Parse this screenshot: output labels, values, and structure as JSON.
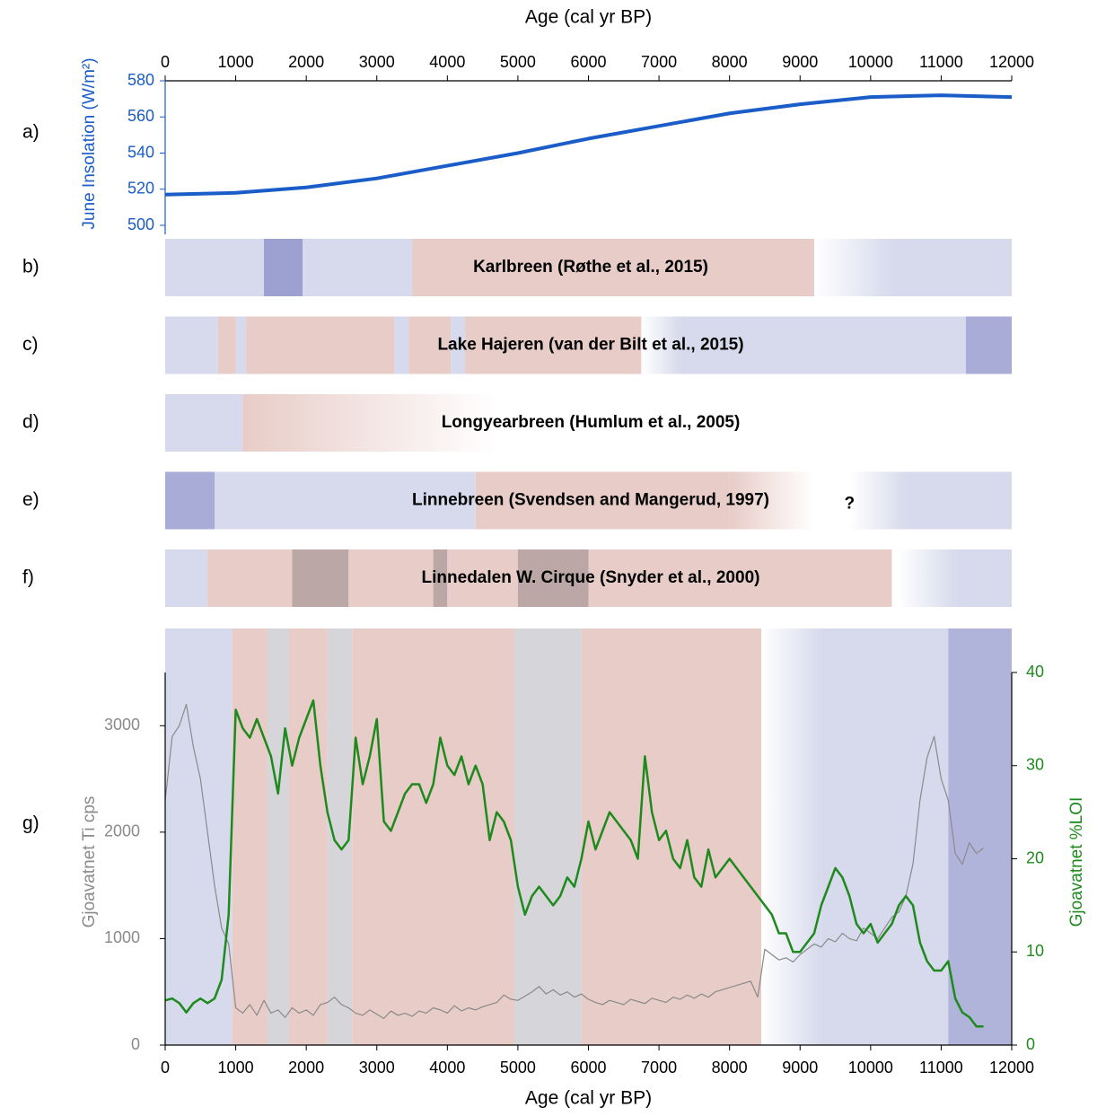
{
  "chart_data": [
    {
      "type": "line",
      "panel": "a)",
      "xlabel": "Age (cal yr BP)",
      "ylabel": "June Insolation (W/m²)",
      "xlim": [
        0,
        12000
      ],
      "xticks": [
        0,
        1000,
        2000,
        3000,
        4000,
        5000,
        6000,
        7000,
        8000,
        9000,
        10000,
        11000,
        12000
      ],
      "ylim": [
        500,
        580
      ],
      "yticks": [
        500,
        520,
        540,
        560,
        580
      ],
      "axis_color": "#1a5cc8",
      "series": [
        {
          "color": "#1a5cc8",
          "x": [
            0,
            1000,
            2000,
            3000,
            4000,
            5000,
            6000,
            7000,
            8000,
            9000,
            10000,
            11000,
            12000
          ],
          "values": [
            517,
            518,
            521,
            526,
            533,
            540,
            548,
            555,
            562,
            567,
            571,
            572,
            571
          ]
        }
      ]
    },
    {
      "type": "timeline",
      "xlim": [
        0,
        12000
      ],
      "rows": [
        {
          "panel": "b)",
          "label": "Karlbreen (Røthe et al., 2015)",
          "segments": [
            {
              "start": 0,
              "end": 1400,
              "color": "#d7daec"
            },
            {
              "start": 1400,
              "end": 1950,
              "color": "#9ca1d2"
            },
            {
              "start": 1950,
              "end": 3500,
              "color": "#d7daec"
            },
            {
              "start": 3500,
              "end": 9200,
              "color": "#e8ccc7"
            },
            {
              "start": 9200,
              "end": 10300,
              "color": "#ffffff",
              "to_color": "#d7daec"
            },
            {
              "start": 10300,
              "end": 12000,
              "color": "#d7daec"
            }
          ]
        },
        {
          "panel": "c)",
          "label": "Lake Hajeren (van der Bilt et al., 2015)",
          "segments": [
            {
              "start": 0,
              "end": 750,
              "color": "#d7daec"
            },
            {
              "start": 750,
              "end": 1000,
              "color": "#e8ccc7"
            },
            {
              "start": 1000,
              "end": 1150,
              "color": "#d7daec"
            },
            {
              "start": 1150,
              "end": 3250,
              "color": "#e8ccc7"
            },
            {
              "start": 3250,
              "end": 3450,
              "color": "#d7daec"
            },
            {
              "start": 3450,
              "end": 4050,
              "color": "#e8ccc7"
            },
            {
              "start": 4050,
              "end": 4250,
              "color": "#d7daec"
            },
            {
              "start": 4250,
              "end": 6750,
              "color": "#e8ccc7"
            },
            {
              "start": 6750,
              "end": 7300,
              "color": "#ffffff",
              "to_color": "#d7daec"
            },
            {
              "start": 7300,
              "end": 11350,
              "color": "#d7daec"
            },
            {
              "start": 11350,
              "end": 12000,
              "color": "#a8acd6"
            }
          ]
        },
        {
          "panel": "d)",
          "label": "Longyearbreen (Humlum et al., 2005)",
          "segments": [
            {
              "start": 0,
              "end": 1100,
              "color": "#d7daec"
            },
            {
              "start": 1100,
              "end": 4700,
              "color": "#e8ccc7",
              "to_color": "#ffffff"
            }
          ]
        },
        {
          "panel": "e)",
          "label": "Linnebreen (Svendsen and Mangerud, 1997)",
          "note": "?",
          "note_at": 9700,
          "segments": [
            {
              "start": 0,
              "end": 700,
              "color": "#a8acd6"
            },
            {
              "start": 700,
              "end": 4400,
              "color": "#d7daec"
            },
            {
              "start": 4400,
              "end": 8000,
              "color": "#e8ccc7"
            },
            {
              "start": 8000,
              "end": 9200,
              "color": "#e8ccc7",
              "to_color": "#ffffff"
            },
            {
              "start": 9700,
              "end": 10500,
              "color": "#ffffff",
              "to_color": "#d7daec"
            },
            {
              "start": 10500,
              "end": 12000,
              "color": "#d7daec"
            }
          ]
        },
        {
          "panel": "f)",
          "label": "Linnedalen W. Cirque (Snyder et al., 2000)",
          "segments": [
            {
              "start": 0,
              "end": 600,
              "color": "#d7daec"
            },
            {
              "start": 600,
              "end": 1800,
              "color": "#e8ccc7"
            },
            {
              "start": 1800,
              "end": 2600,
              "color": "#bba8a6"
            },
            {
              "start": 2600,
              "end": 3800,
              "color": "#e8ccc7"
            },
            {
              "start": 3800,
              "end": 4000,
              "color": "#bba8a6"
            },
            {
              "start": 4000,
              "end": 5000,
              "color": "#e8ccc7"
            },
            {
              "start": 5000,
              "end": 6000,
              "color": "#bba8a6"
            },
            {
              "start": 6000,
              "end": 10300,
              "color": "#e8ccc7"
            },
            {
              "start": 10400,
              "end": 11200,
              "color": "#ffffff",
              "to_color": "#d7daec"
            },
            {
              "start": 11200,
              "end": 12000,
              "color": "#d7daec"
            }
          ]
        }
      ]
    },
    {
      "type": "line",
      "panel": "g)",
      "xlabel": "Age (cal yr BP)",
      "ylabel": "Gjoavatnet Ti cps",
      "y2label": "Gjoavatnet %LOI",
      "xlim": [
        0,
        12000
      ],
      "xticks": [
        0,
        1000,
        2000,
        3000,
        4000,
        5000,
        6000,
        7000,
        8000,
        9000,
        10000,
        11000,
        12000
      ],
      "ylim": [
        0,
        3500
      ],
      "yticks": [
        0,
        1000,
        2000,
        3000
      ],
      "y2lim": [
        0,
        40
      ],
      "y2ticks": [
        0,
        10,
        20,
        30,
        40
      ],
      "shading": [
        {
          "start": 0,
          "end": 950,
          "color": "#d7daec"
        },
        {
          "start": 950,
          "end": 1450,
          "color": "#e8ccc7"
        },
        {
          "start": 1450,
          "end": 1750,
          "color": "#d6d6da"
        },
        {
          "start": 1750,
          "end": 2300,
          "color": "#e8ccc7"
        },
        {
          "start": 2300,
          "end": 2650,
          "color": "#d6d6da"
        },
        {
          "start": 2650,
          "end": 4950,
          "color": "#e8ccc7"
        },
        {
          "start": 4950,
          "end": 5900,
          "color": "#d6d6da"
        },
        {
          "start": 5900,
          "end": 8450,
          "color": "#e8ccc7"
        },
        {
          "start": 8450,
          "end": 9300,
          "color": "#ffffff",
          "to_color": "#d7daec"
        },
        {
          "start": 9300,
          "end": 11100,
          "color": "#d7daec"
        },
        {
          "start": 11100,
          "end": 12000,
          "color": "#b1b4da"
        }
      ],
      "series": [
        {
          "color": "#8a8a8a",
          "x": [
            0,
            100,
            200,
            300,
            400,
            500,
            600,
            700,
            800,
            900,
            1000,
            1100,
            1200,
            1300,
            1400,
            1500,
            1600,
            1700,
            1800,
            1900,
            2000,
            2100,
            2200,
            2300,
            2400,
            2500,
            2600,
            2700,
            2800,
            2900,
            3000,
            3100,
            3200,
            3300,
            3400,
            3500,
            3600,
            3700,
            3800,
            3900,
            4000,
            4100,
            4200,
            4300,
            4400,
            4500,
            4600,
            4700,
            4800,
            4900,
            5000,
            5100,
            5200,
            5300,
            5400,
            5500,
            5600,
            5700,
            5800,
            5900,
            6000,
            6100,
            6200,
            6300,
            6400,
            6500,
            6600,
            6700,
            6800,
            6900,
            7000,
            7100,
            7200,
            7300,
            7400,
            7500,
            7600,
            7700,
            7800,
            7900,
            8000,
            8100,
            8200,
            8300,
            8400,
            8500,
            8600,
            8700,
            8800,
            8900,
            9000,
            9100,
            9200,
            9300,
            9400,
            9500,
            9600,
            9700,
            9800,
            9900,
            10000,
            10100,
            10200,
            10300,
            10400,
            10500,
            10600,
            10700,
            10800,
            10900,
            11000,
            11100,
            11200,
            11300,
            11400,
            11500,
            11600
          ],
          "values": [
            2300,
            2900,
            3000,
            3200,
            2800,
            2500,
            2000,
            1500,
            1100,
            950,
            350,
            300,
            380,
            280,
            420,
            300,
            330,
            260,
            350,
            300,
            330,
            280,
            380,
            400,
            450,
            380,
            350,
            300,
            280,
            330,
            290,
            250,
            320,
            280,
            300,
            270,
            320,
            300,
            350,
            330,
            300,
            370,
            320,
            350,
            330,
            360,
            380,
            400,
            470,
            430,
            420,
            460,
            500,
            550,
            480,
            520,
            470,
            500,
            450,
            480,
            430,
            400,
            380,
            420,
            400,
            380,
            430,
            410,
            390,
            440,
            420,
            400,
            450,
            430,
            470,
            440,
            480,
            450,
            500,
            520,
            540,
            560,
            580,
            600,
            450,
            900,
            850,
            800,
            820,
            780,
            850,
            900,
            950,
            920,
            1000,
            970,
            1050,
            1000,
            980,
            1100,
            1050,
            1000,
            1100,
            1200,
            1250,
            1400,
            1700,
            2300,
            2700,
            2900,
            2500,
            2300,
            1800,
            1700,
            1900,
            1800,
            1850
          ]
        },
        {
          "color": "#1e8a1e",
          "axis": "y2",
          "x": [
            0,
            100,
            200,
            300,
            400,
            500,
            600,
            700,
            800,
            900,
            950,
            1000,
            1100,
            1200,
            1300,
            1400,
            1500,
            1600,
            1700,
            1800,
            1900,
            2000,
            2100,
            2200,
            2300,
            2400,
            2500,
            2600,
            2700,
            2800,
            2900,
            3000,
            3100,
            3200,
            3300,
            3400,
            3500,
            3600,
            3700,
            3800,
            3900,
            4000,
            4100,
            4200,
            4300,
            4400,
            4500,
            4600,
            4700,
            4800,
            4900,
            5000,
            5100,
            5200,
            5300,
            5400,
            5500,
            5600,
            5700,
            5800,
            5900,
            6000,
            6100,
            6200,
            6300,
            6400,
            6500,
            6600,
            6700,
            6800,
            6900,
            7000,
            7100,
            7200,
            7300,
            7400,
            7500,
            7600,
            7700,
            7800,
            7900,
            8000,
            8100,
            8200,
            8300,
            8400,
            8500,
            8600,
            8700,
            8800,
            8900,
            9000,
            9100,
            9200,
            9300,
            9400,
            9500,
            9600,
            9700,
            9800,
            9900,
            10000,
            10100,
            10200,
            10300,
            10400,
            10500,
            10600,
            10700,
            10800,
            10900,
            11000,
            11100,
            11200,
            11300,
            11400,
            11500,
            11600
          ],
          "values": [
            4.8,
            5,
            4.5,
            3.5,
            4.5,
            5,
            4.5,
            5,
            7,
            14,
            25,
            36,
            34,
            33,
            35,
            33,
            31,
            27,
            34,
            30,
            33,
            35,
            37,
            30,
            25,
            22,
            21,
            22,
            33,
            28,
            31,
            35,
            24,
            23,
            25,
            27,
            28,
            28,
            26,
            28,
            33,
            30,
            29,
            31,
            28,
            30,
            28,
            22,
            25,
            24,
            22,
            17,
            14,
            16,
            17,
            16,
            15,
            16,
            18,
            17,
            20,
            24,
            21,
            23,
            25,
            24,
            23,
            22,
            20,
            31,
            25,
            22,
            23,
            20,
            19,
            22,
            18,
            17,
            21,
            18,
            19,
            20,
            19,
            18,
            17,
            16,
            15,
            14,
            12,
            12,
            10,
            10,
            11,
            12,
            15,
            17,
            19,
            18,
            16,
            13,
            12,
            13,
            11,
            12,
            13,
            15,
            16,
            15,
            11,
            9,
            8,
            8,
            9,
            5,
            3.5,
            3,
            2,
            2
          ]
        }
      ]
    }
  ]
}
